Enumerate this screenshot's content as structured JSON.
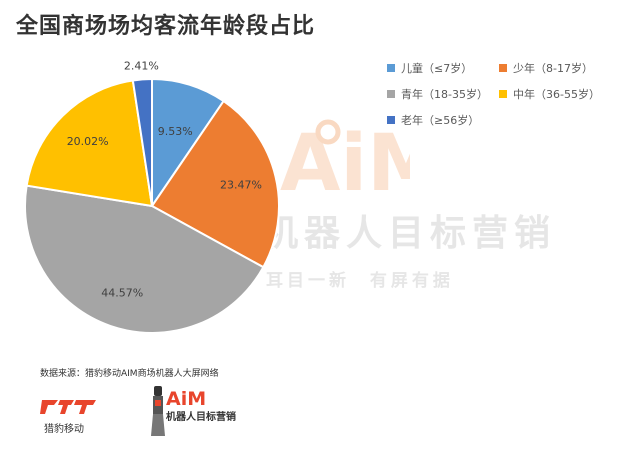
{
  "title": "全国商场场均客流年龄段占比",
  "source": "数据来源：猎豹移动AIM商场机器人大屏网络",
  "watermark": {
    "brand": "AiM",
    "line1": "机器人目标营销",
    "line2": "耳目一新  有屏有据"
  },
  "logos": {
    "cheetah": "猎豹移动",
    "aim": "机器人目标营销",
    "aim_brand": "AiM"
  },
  "chart_data": {
    "type": "pie",
    "title": "全国商场场均客流年龄段占比",
    "categories": [
      "儿童（≤7岁）",
      "少年（8-17岁）",
      "青年（18-35岁）",
      "中年（36-55岁）",
      "老年（≥56岁）"
    ],
    "values": [
      9.53,
      23.47,
      44.57,
      20.02,
      2.41
    ],
    "data_labels": [
      "9.53%",
      "23.47%",
      "44.57%",
      "20.02%",
      "2.41%"
    ],
    "colors": [
      "#5B9BD5",
      "#ED7D31",
      "#A5A5A5",
      "#FFC000",
      "#4472C4"
    ],
    "legend_position": "right"
  }
}
